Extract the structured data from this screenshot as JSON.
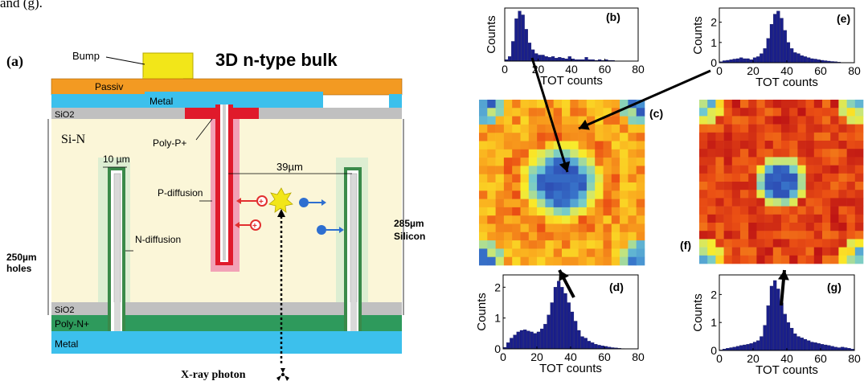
{
  "caption_fragment": "and (g).",
  "diagram": {
    "panel_label": "(a)",
    "title": "3D n-type bulk",
    "labels": {
      "bump": "Bump",
      "passiv": "Passiv",
      "metal_top": "Metal",
      "sio2_top": "SiO2",
      "si_n": "Si-N",
      "poly_p": "Poly-P+",
      "width": "10 µm",
      "pitch": "39µm",
      "p_diffusion": "P-diffusion",
      "n_diffusion": "N-diffusion",
      "holes_depth_1": "250µm",
      "holes_depth_2": "holes",
      "silicon_1": "285µm",
      "silicon_2": "Silicon",
      "sio2_bottom": "SiO2",
      "poly_n": "Poly-N+",
      "metal_bottom": "Metal",
      "photon": "X-ray photon"
    },
    "colors": {
      "passiv": "#f39a22",
      "metal": "#3cc0ec",
      "sio2": "#c0c0c0",
      "bulk": "#fbf6d8",
      "poly_n": "#2e9a5c",
      "poly_p": "#e01a2b",
      "p_diffusion": "#f2a1b6",
      "n_diffusion": "#3a8a4a",
      "bump": "#f2e619",
      "hole": "#e23030",
      "electron": "#2e6fd0"
    }
  },
  "chart_data": [
    {
      "id": "b",
      "type": "bar",
      "panel_label": "(b)",
      "xlabel": "TOT counts",
      "ylabel": "Counts",
      "xticks": [
        0,
        20,
        40,
        60,
        80
      ],
      "yticks": [],
      "xlim": [
        0,
        80
      ],
      "ylim": [
        0,
        7
      ],
      "bin_width": 2,
      "x": [
        0,
        2,
        4,
        6,
        8,
        10,
        12,
        14,
        16,
        18,
        20,
        22,
        24,
        26,
        28,
        30,
        32,
        34,
        36,
        38,
        40,
        42,
        44,
        46,
        48,
        50,
        52,
        54,
        56,
        58,
        60,
        62,
        64,
        66,
        68,
        70
      ],
      "values": [
        0.2,
        0.6,
        2.6,
        5.6,
        6.6,
        6.1,
        4.2,
        2.4,
        1.5,
        1.0,
        0.8,
        0.8,
        0.6,
        0.5,
        0.6,
        0.4,
        0.5,
        0.4,
        0.3,
        0.6,
        0.3,
        0.2,
        0.2,
        0.2,
        0.5,
        0.2,
        0.2,
        0.1,
        0.2,
        0.1,
        0.2,
        0.1,
        0.1,
        0,
        0,
        0
      ]
    },
    {
      "id": "e",
      "type": "bar",
      "panel_label": "(e)",
      "xlabel": "TOT counts",
      "ylabel": "Counts",
      "xticks": [
        0,
        20,
        40,
        60,
        80
      ],
      "yticks": [
        0,
        1,
        2
      ],
      "xlim": [
        0,
        80
      ],
      "ylim": [
        0,
        2.7
      ],
      "bin_width": 2,
      "x": [
        0,
        2,
        4,
        6,
        8,
        10,
        12,
        14,
        16,
        18,
        20,
        22,
        24,
        26,
        28,
        30,
        32,
        34,
        36,
        38,
        40,
        42,
        44,
        46,
        48,
        50,
        52,
        54,
        56,
        58,
        60,
        62,
        64,
        66,
        68,
        70
      ],
      "values": [
        0.05,
        0.1,
        0.12,
        0.15,
        0.18,
        0.2,
        0.25,
        0.2,
        0.2,
        0.15,
        0.25,
        0.3,
        0.45,
        0.7,
        1.2,
        1.9,
        2.4,
        2.55,
        2.2,
        1.6,
        1.0,
        0.7,
        0.5,
        0.45,
        0.35,
        0.3,
        0.25,
        0.2,
        0.18,
        0.15,
        0.12,
        0.1,
        0.08,
        0.06,
        0.05,
        0.03
      ]
    },
    {
      "id": "d",
      "type": "bar",
      "panel_label": "(d)",
      "xlabel": "TOT counts",
      "ylabel": "Counts",
      "xticks": [
        0,
        20,
        40,
        60,
        80
      ],
      "yticks": [
        0,
        1,
        2
      ],
      "xlim": [
        0,
        80
      ],
      "ylim": [
        0,
        2.4
      ],
      "bin_width": 2,
      "x": [
        0,
        2,
        4,
        6,
        8,
        10,
        12,
        14,
        16,
        18,
        20,
        22,
        24,
        26,
        28,
        30,
        32,
        34,
        36,
        38,
        40,
        42,
        44,
        46,
        48,
        50,
        52,
        54,
        56,
        58,
        60,
        62,
        64,
        66,
        68,
        70
      ],
      "values": [
        0.05,
        0.2,
        0.35,
        0.45,
        0.55,
        0.6,
        0.62,
        0.58,
        0.55,
        0.5,
        0.55,
        0.65,
        0.8,
        1.1,
        1.5,
        2.0,
        2.2,
        2.0,
        1.8,
        1.5,
        1.2,
        0.9,
        0.6,
        0.4,
        0.35,
        0.25,
        0.2,
        0.15,
        0.12,
        0.1,
        0.08,
        0.06,
        0.04,
        0.03,
        0.02,
        0.01
      ]
    },
    {
      "id": "g",
      "type": "bar",
      "panel_label": "(g)",
      "xlabel": "TOT counts",
      "ylabel": "Counts",
      "xticks": [
        0,
        20,
        40,
        60,
        80
      ],
      "yticks": [
        0,
        1,
        2
      ],
      "xlim": [
        0,
        80
      ],
      "ylim": [
        0,
        2.7
      ],
      "bin_width": 2,
      "x": [
        0,
        2,
        4,
        6,
        8,
        10,
        12,
        14,
        16,
        18,
        20,
        22,
        24,
        26,
        28,
        30,
        32,
        34,
        36,
        38,
        40,
        42,
        44,
        46,
        48,
        50,
        52,
        54,
        56,
        58,
        60,
        62,
        64,
        66,
        68,
        70,
        72,
        74,
        76,
        78
      ],
      "values": [
        0.02,
        0.05,
        0.08,
        0.1,
        0.12,
        0.15,
        0.18,
        0.2,
        0.22,
        0.25,
        0.3,
        0.35,
        0.5,
        0.9,
        1.6,
        2.3,
        2.5,
        2.2,
        1.7,
        1.3,
        1.0,
        0.8,
        0.6,
        0.5,
        0.45,
        0.4,
        0.35,
        0.3,
        0.28,
        0.25,
        0.22,
        0.2,
        0.18,
        0.15,
        0.12,
        0.1,
        0.12,
        0.1,
        0.08,
        0.05
      ]
    }
  ],
  "maps": [
    {
      "id": "c",
      "panel_label": "(c)",
      "type": "heatmap",
      "grid": 20,
      "core_radius": 2.6,
      "halo_radius": 5.0,
      "peak_radius": 7.0
    },
    {
      "id": "f",
      "panel_label": "(f)",
      "type": "heatmap",
      "grid": 20,
      "core_radius": 1.8,
      "halo_radius": 3.5,
      "peak_radius": 6.5
    }
  ]
}
